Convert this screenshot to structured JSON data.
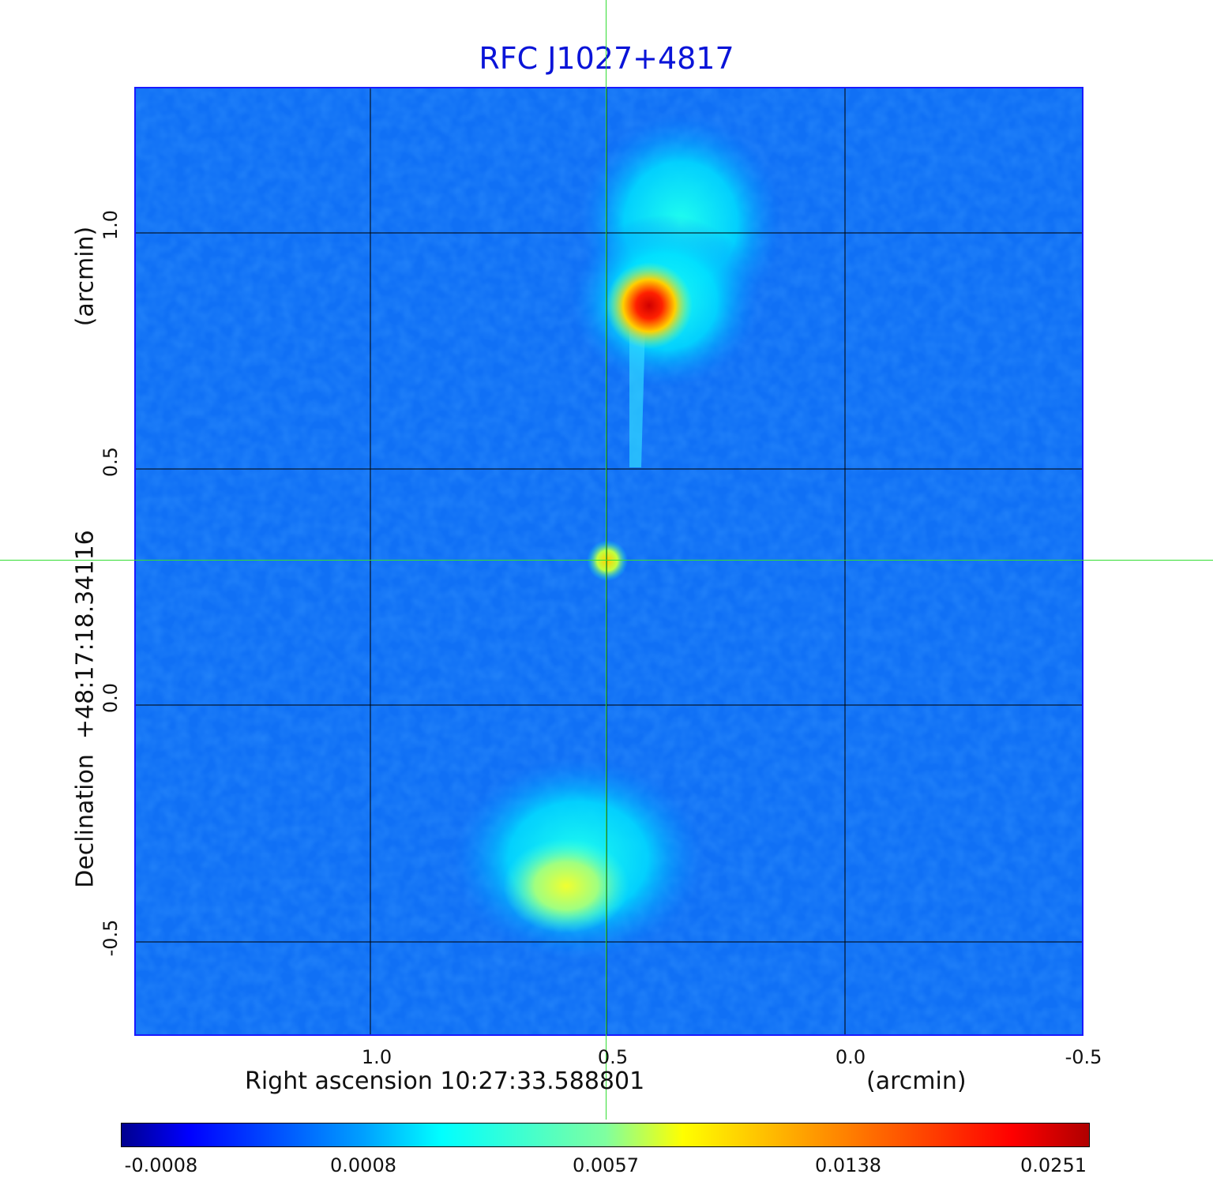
{
  "chart_data": {
    "type": "heatmap",
    "title": "RFC J1027+4817",
    "xlabel": "Right ascension  10:27:33.588801",
    "xunit": "(arcmin)",
    "ylabel": "Declination  +48:17:18.34116",
    "yunit": "(arcmin)",
    "xlim": [
      1.5,
      -0.5
    ],
    "ylim": [
      -0.7,
      1.31
    ],
    "xticks": [
      "1.0",
      "0.5",
      "0.0",
      "-0.5"
    ],
    "yticks": [
      "1.0",
      "0.5",
      "0.0",
      "-0.5"
    ],
    "grid": true,
    "colormap": "jet",
    "colorbar": {
      "placement": "bottom",
      "ticks": [
        "-0.0008",
        "0.0008",
        "0.0057",
        "0.0138",
        "0.0251"
      ],
      "range": [
        -0.0008,
        0.0251
      ]
    },
    "crosshair": {
      "x": 0.5,
      "y": 0.31
    },
    "features": [
      {
        "name": "core",
        "x": 0.5,
        "y": 0.31,
        "level": 0.55
      },
      {
        "name": "north-hotspot",
        "x": 0.42,
        "y": 0.85,
        "level": 1.0
      },
      {
        "name": "north-lobe",
        "x": 0.35,
        "y": 1.05,
        "level": 0.35
      },
      {
        "name": "south-lobe",
        "x": 0.56,
        "y": -0.35,
        "level": 0.4
      },
      {
        "name": "south-hotspot",
        "x": 0.6,
        "y": -0.41,
        "level": 0.55
      }
    ]
  }
}
